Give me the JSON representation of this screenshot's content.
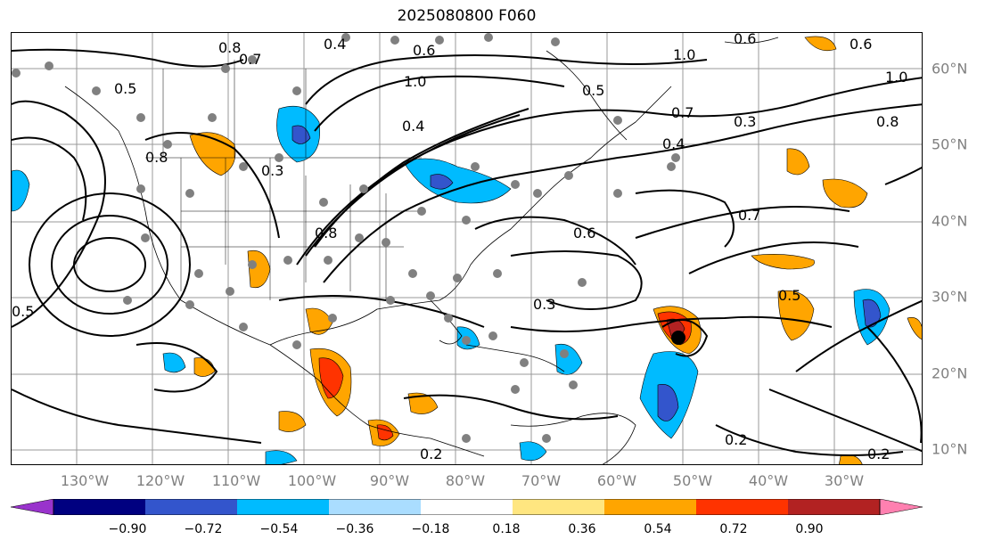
{
  "title": "2025080800 F060",
  "lon_labels": [
    "130°W",
    "120°W",
    "110°W",
    "100°W",
    "90°W",
    "80°W",
    "70°W",
    "60°W",
    "50°W",
    "40°W",
    "30°W"
  ],
  "lat_labels": [
    "60°N",
    "50°N",
    "40°N",
    "30°N",
    "20°N",
    "10°N"
  ],
  "colorbar": {
    "ticks": [
      "−0.90",
      "−0.72",
      "−0.54",
      "−0.36",
      "−0.18",
      "0.18",
      "0.36",
      "0.54",
      "0.72",
      "0.90"
    ],
    "colors": [
      "#9933cc",
      "#000080",
      "#3355cc",
      "#00bbff",
      "#aaddff",
      "#ffffff",
      "#ffe680",
      "#ffa500",
      "#ff3300",
      "#b22222",
      "#ff80b0"
    ]
  },
  "contour_labels": [
    {
      "text": "0.8"
    },
    {
      "text": "0.4"
    },
    {
      "text": "0.7"
    },
    {
      "text": "0.5"
    },
    {
      "text": "0.6"
    },
    {
      "text": "1.0"
    },
    {
      "text": "0.4"
    },
    {
      "text": "0.3"
    },
    {
      "text": "0.8"
    },
    {
      "text": "0.6"
    },
    {
      "text": "0.5"
    },
    {
      "text": "0.2"
    },
    {
      "text": "0.3"
    },
    {
      "text": "0.7"
    },
    {
      "text": "0.4"
    },
    {
      "text": "0.6"
    },
    {
      "text": "1.0"
    },
    {
      "text": "0.5"
    },
    {
      "text": "0.8"
    },
    {
      "text": "0.6"
    },
    {
      "text": "1.0"
    },
    {
      "text": "0.2"
    },
    {
      "text": "0.3"
    },
    {
      "text": "0.5"
    },
    {
      "text": "0.8"
    },
    {
      "text": "0.7"
    },
    {
      "text": "0.2"
    }
  ]
}
